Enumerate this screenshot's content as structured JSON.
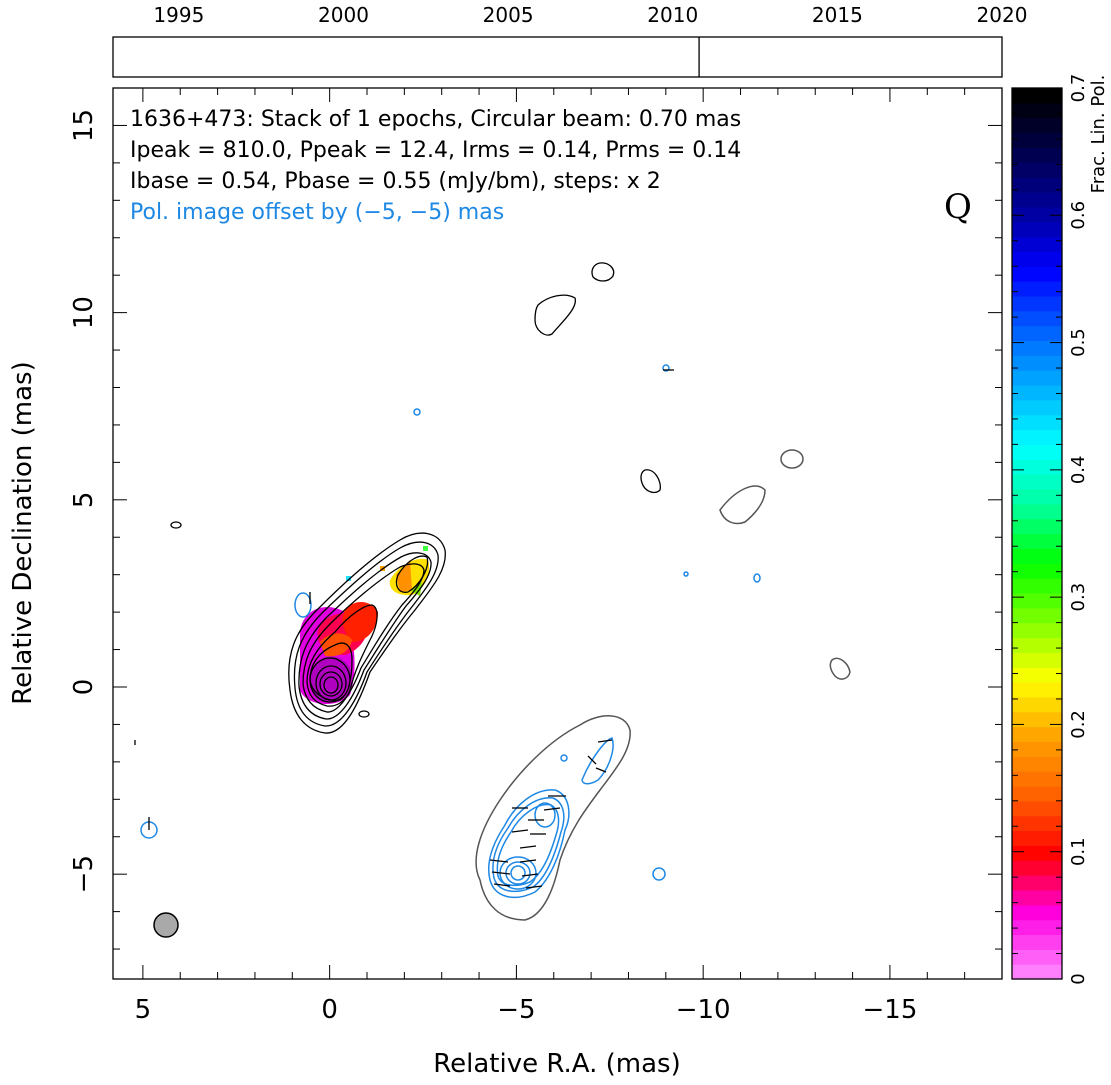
{
  "chart_data": {
    "type": "contour",
    "source": "1636+473",
    "timeline": {
      "tick_labels": [
        "1995",
        "2000",
        "2005",
        "2010",
        "2015",
        "2020"
      ],
      "range": [
        1993,
        2020
      ],
      "epoch_markers": [
        2010.8
      ]
    },
    "info": {
      "line1": "1636+473: Stack of 1 epochs, Circular beam: 0.70 mas",
      "line2": "Ipeak = 810.0, Ppeak = 12.4, Irms = 0.14, Prms = 0.14",
      "line3": "Ibase = 0.54, Pbase = 0.55 (mJy/bm), steps: x 2",
      "line4": "Pol. image offset by (−5, −5) mas",
      "quality_flag": "Q"
    },
    "xlabel": "Relative R.A. (mas)",
    "ylabel": "Relative Declination (mas)",
    "xlim": [
      5.8,
      -18
    ],
    "ylim": [
      -7.8,
      16
    ],
    "x_ticks": [
      5,
      0,
      -5,
      -10,
      -15
    ],
    "x_tick_labels": [
      "5",
      "0",
      "−5",
      "−10",
      "−15"
    ],
    "y_ticks": [
      -5,
      0,
      5,
      10,
      15
    ],
    "y_tick_labels": [
      "−5",
      "0",
      "5",
      "10",
      "15"
    ],
    "beam": {
      "x": 4.4,
      "y": -6.3,
      "diameter_mas": 0.7
    },
    "colorbar": {
      "label": "Frac. Lin. Pol.",
      "range": [
        0,
        0.7
      ],
      "ticks": [
        0,
        0.1,
        0.2,
        0.3,
        0.4,
        0.5,
        0.6,
        0.7
      ],
      "tick_labels": [
        "0",
        "0.1",
        "0.2",
        "0.3",
        "0.4",
        "0.5",
        "0.6",
        "0.7"
      ],
      "colors": [
        "#ff7fff",
        "#ff00e0",
        "#ff0000",
        "#ff6000",
        "#ffa000",
        "#ffff00",
        "#80ff00",
        "#00ff00",
        "#00ffa0",
        "#00ffff",
        "#00b0ff",
        "#0060ff",
        "#0000ff",
        "#0000a0",
        "#000050",
        "#000000"
      ]
    },
    "core": {
      "x": 0,
      "y": 0
    },
    "polarized_core": {
      "x": -5,
      "y": -5
    }
  }
}
